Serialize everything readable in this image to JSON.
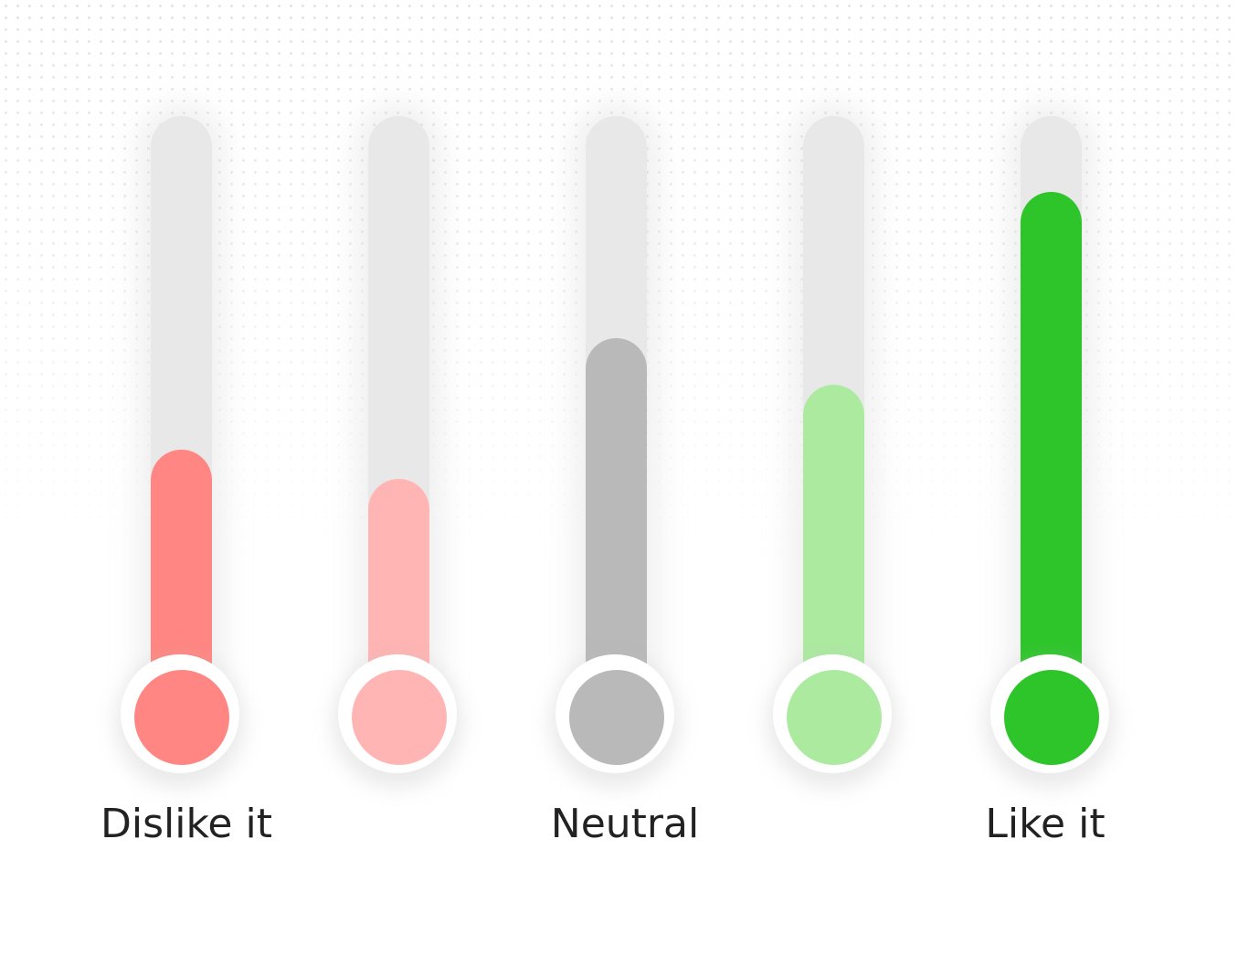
{
  "scale": {
    "labels": {
      "dislike": "Dislike it",
      "neutral": "Neutral",
      "like": "Like it"
    },
    "items": [
      {
        "level": 0.43,
        "color": "#ff8682"
      },
      {
        "level": 0.38,
        "color": "#ffb5b3"
      },
      {
        "level": 0.62,
        "color": "#b9b9b9"
      },
      {
        "level": 0.54,
        "color": "#aceaa0"
      },
      {
        "level": 0.87,
        "color": "#2ec52b"
      }
    ],
    "track_color": "#e8e8e8"
  }
}
